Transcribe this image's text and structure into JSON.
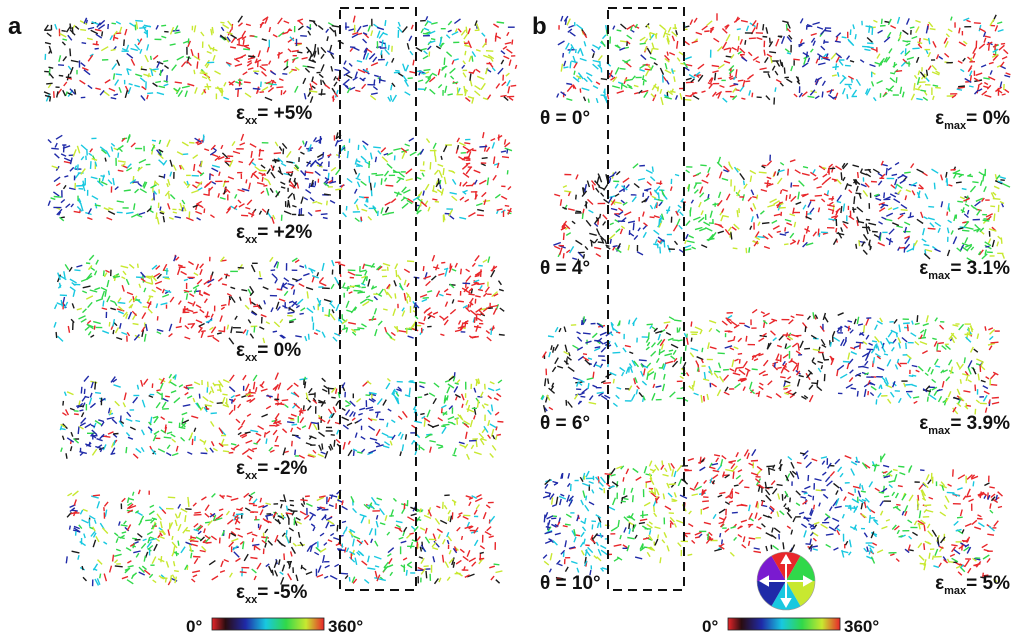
{
  "panels": {
    "a": {
      "letter": "a",
      "rows": [
        {
          "symbol": "ε",
          "subscript": "xx",
          "value": "= +5%"
        },
        {
          "symbol": "ε",
          "subscript": "xx",
          "value": "= +2%"
        },
        {
          "symbol": "ε",
          "subscript": "xx",
          "value": "= 0%"
        },
        {
          "symbol": "ε",
          "subscript": "xx",
          "value": "= -2%"
        },
        {
          "symbol": "ε",
          "subscript": "xx",
          "value": "= -5%"
        }
      ]
    },
    "b": {
      "letter": "b",
      "rows": [
        {
          "theta": "θ = 0°",
          "symbol": "ε",
          "subscript": "max",
          "value": "= 0%"
        },
        {
          "theta": "θ = 4°",
          "symbol": "ε",
          "subscript": "max",
          "value": "= 3.1%"
        },
        {
          "theta": "θ = 6°",
          "symbol": "ε",
          "subscript": "max",
          "value": "= 3.9%"
        },
        {
          "theta": "θ = 10°",
          "symbol": "ε",
          "subscript": "max",
          "value": "= 5%"
        }
      ]
    }
  },
  "colorbars": {
    "a": {
      "min_label": "0°",
      "max_label": "360°"
    },
    "b": {
      "min_label": "0°",
      "max_label": "360°"
    }
  },
  "colormap": [
    "#e8262a",
    "#1a1a1a",
    "#1f2aa8",
    "#18c8e0",
    "#30d84a",
    "#c8e830",
    "#e8262a"
  ],
  "color_wheel_icon": "color-wheel-icon"
}
